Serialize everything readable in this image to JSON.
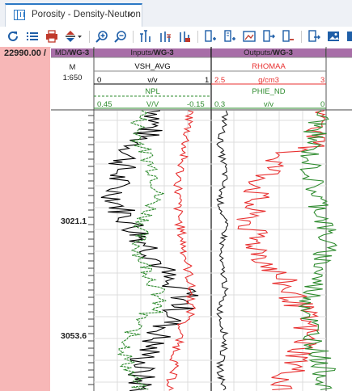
{
  "tab": {
    "title": "Porosity - Density-Neutron",
    "close": "×"
  },
  "toolbar": {
    "icons": [
      "refresh-icon",
      "list-icon",
      "print-icon",
      "pan-vertical-icon",
      "zoom-in-icon",
      "zoom-out-icon",
      "track-add-icon",
      "track-format-icon",
      "track-remove-icon",
      "curve-add-icon",
      "curve-add-2-icon",
      "curve-image-icon",
      "curve-insert-icon",
      "curve-remove-icon",
      "export-icon",
      "image-icon",
      "image-2-icon"
    ]
  },
  "depth_box": {
    "value": "22990.00 /"
  },
  "depth_track": {
    "header": "MD/",
    "header_well": "WG-3",
    "unit": "M",
    "scale": "1:650",
    "ticks": [
      "3021.1",
      "3053.6"
    ]
  },
  "inputs_track": {
    "header": "Inputs/",
    "header_well": "WG-3",
    "curve1": {
      "name": "VSH_AVG",
      "min": "0",
      "unit": "v/v",
      "max": "1",
      "color": "#000000"
    },
    "curve2": {
      "name": "NPL",
      "min": "0.45",
      "unit": "V/V",
      "max": "-0.15",
      "color": "#2e8b2e"
    }
  },
  "outputs_track": {
    "header": "Outputs/",
    "header_well": "WG-3",
    "curve1": {
      "name": "RHOMAA",
      "min": "2.5",
      "unit": "g/cm3",
      "max": "3",
      "color": "#e83030"
    },
    "curve2": {
      "name": "PHIE_ND",
      "min": "0.3",
      "unit": "v/v",
      "max": "0",
      "color": "#2e8b2e"
    }
  }
}
